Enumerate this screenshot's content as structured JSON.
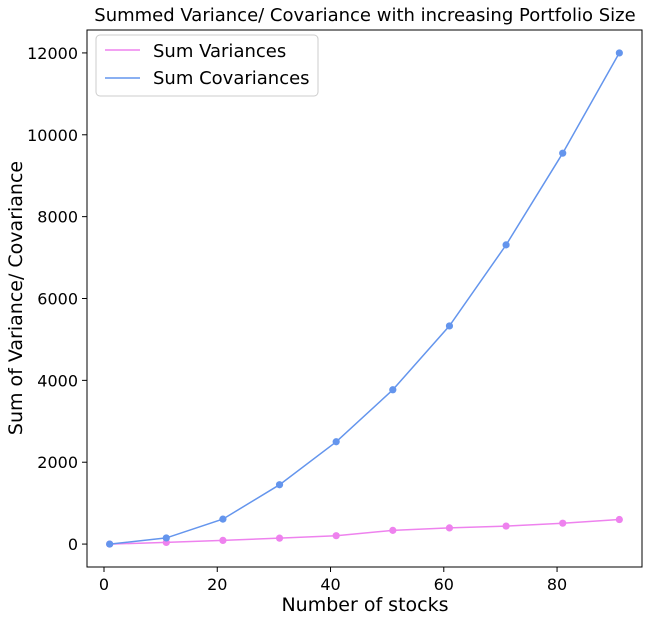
{
  "chart_data": {
    "type": "line",
    "title": "Summed Variance/ Covariance with increasing Portfolio Size",
    "xlabel": "Number of stocks",
    "ylabel": "Sum of Variance/ Covariance",
    "xlim": [
      -3,
      95
    ],
    "ylim": [
      -560,
      12560
    ],
    "xticks": [
      0,
      20,
      40,
      60,
      80
    ],
    "yticks": [
      0,
      2000,
      4000,
      6000,
      8000,
      10000,
      12000
    ],
    "grid": false,
    "legend_position": "upper-left",
    "x": [
      1,
      11,
      21,
      31,
      41,
      51,
      61,
      71,
      81,
      91
    ],
    "series": [
      {
        "name": "Sum Variances",
        "color": "#ee82ee",
        "values": [
          0,
          40,
          90,
          145,
          205,
          335,
          395,
          440,
          510,
          600
        ]
      },
      {
        "name": "Sum Covariances",
        "color": "#6495ed",
        "values": [
          0,
          150,
          610,
          1450,
          2500,
          3770,
          5330,
          7310,
          9550,
          12000
        ]
      }
    ]
  }
}
